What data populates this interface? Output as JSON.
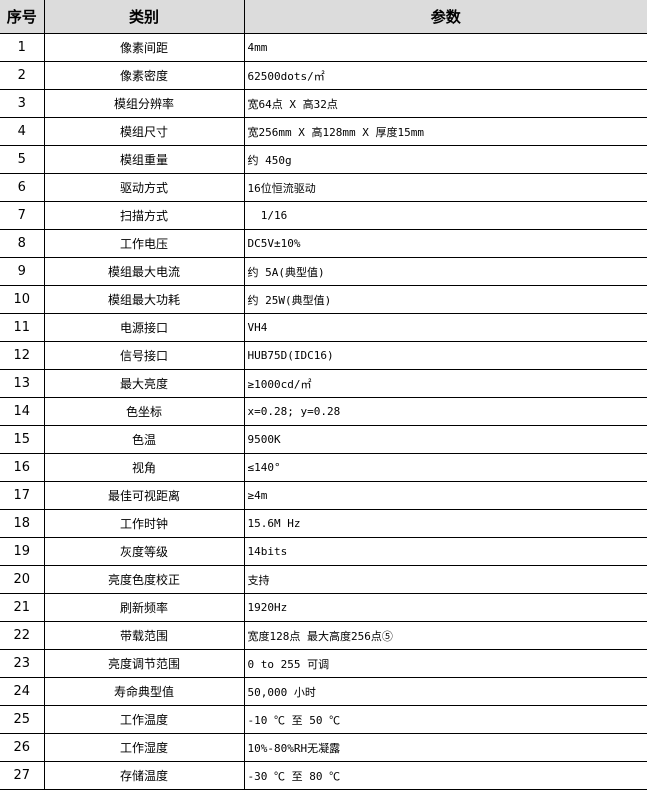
{
  "header": {
    "no": "序号",
    "category": "类别",
    "params": "参数"
  },
  "rows": [
    {
      "no": "1",
      "category": "像素间距",
      "value": "4mm"
    },
    {
      "no": "2",
      "category": "像素密度",
      "value": "62500dots/㎡"
    },
    {
      "no": "3",
      "category": "模组分辨率",
      "value": "宽64点 X 高32点"
    },
    {
      "no": "4",
      "category": "模组尺寸",
      "value": "宽256mm X 高128mm X 厚度15mm"
    },
    {
      "no": "5",
      "category": "模组重量",
      "value": "约 450g"
    },
    {
      "no": "6",
      "category": "驱动方式",
      "value": "16位恒流驱动"
    },
    {
      "no": "7",
      "category": "扫描方式",
      "value": "  1/16"
    },
    {
      "no": "8",
      "category": "工作电压",
      "value": "DC5V±10%"
    },
    {
      "no": "9",
      "category": "模组最大电流",
      "value": "约 5A(典型值)"
    },
    {
      "no": "10",
      "category": "模组最大功耗",
      "value": "约 25W(典型值)"
    },
    {
      "no": "11",
      "category": "电源接口",
      "value": "VH4"
    },
    {
      "no": "12",
      "category": "信号接口",
      "value": "HUB75D(IDC16)"
    },
    {
      "no": "13",
      "category": "最大亮度",
      "value": "≥1000cd/㎡"
    },
    {
      "no": "14",
      "category": "色坐标",
      "value": "x=0.28; y=0.28"
    },
    {
      "no": "15",
      "category": "色温",
      "value": "9500K"
    },
    {
      "no": "16",
      "category": "视角",
      "value": "≤140°"
    },
    {
      "no": "17",
      "category": "最佳可视距离",
      "value": "≥4m"
    },
    {
      "no": "18",
      "category": "工作时钟",
      "value": "15.6M Hz"
    },
    {
      "no": "19",
      "category": "灰度等级",
      "value": "14bits"
    },
    {
      "no": "20",
      "category": "亮度色度校正",
      "value": "支持"
    },
    {
      "no": "21",
      "category": "刷新频率",
      "value": "1920Hz"
    },
    {
      "no": "22",
      "category": "带载范围",
      "value": "宽度128点 最大高度256点⑤"
    },
    {
      "no": "23",
      "category": "亮度调节范围",
      "value": "0 to 255 可调"
    },
    {
      "no": "24",
      "category": "寿命典型值",
      "value": "50,000 小时"
    },
    {
      "no": "25",
      "category": "工作温度",
      "value": "-10 ℃ 至 50 ℃"
    },
    {
      "no": "26",
      "category": "工作湿度",
      "value": "10%-80%RH无凝露"
    },
    {
      "no": "27",
      "category": "存储温度",
      "value": "-30 ℃ 至 80 ℃"
    }
  ]
}
